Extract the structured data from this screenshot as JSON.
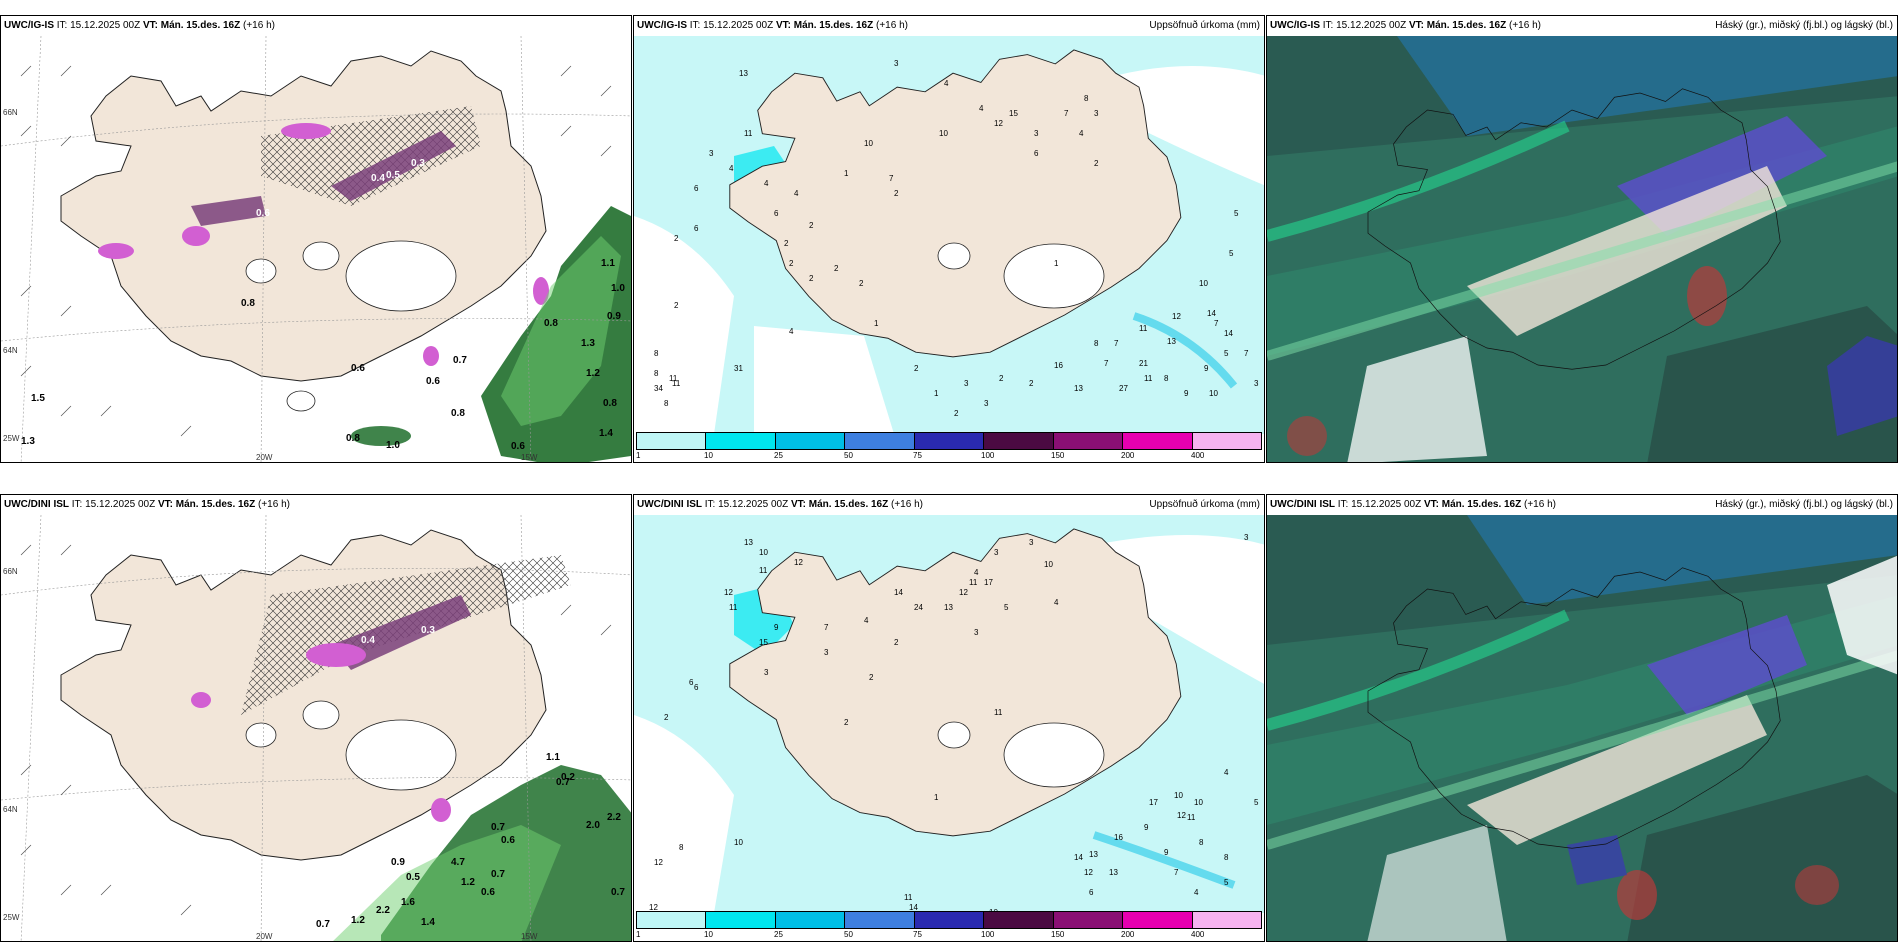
{
  "panels": [
    {
      "model": "UWC/IG-IS",
      "it": "IT: 15.12.2025 00Z",
      "vt_label": "VT:",
      "vt": "Mán. 15.des. 16Z",
      "offset": "(+16 h)",
      "right": ""
    },
    {
      "model": "UWC/IG-IS",
      "it": "IT: 15.12.2025 00Z",
      "vt_label": "VT:",
      "vt": "Mán. 15.des. 16Z",
      "offset": "(+16 h)",
      "right": "Uppsöfnuð úrkoma (mm)"
    },
    {
      "model": "UWC/IG-IS",
      "it": "IT: 15.12.2025 00Z",
      "vt_label": "VT:",
      "vt": "Mán. 15.des. 16Z",
      "offset": "(+16 h)",
      "right": "Háský (gr.), miðský (fj.bl.) og lágský (bl.)"
    },
    {
      "model": "UWC/DINI ISL",
      "it": "IT: 15.12.2025 00Z",
      "vt_label": "VT:",
      "vt": "Mán. 15.des. 16Z",
      "offset": "(+16 h)",
      "right": ""
    },
    {
      "model": "UWC/DINI ISL",
      "it": "IT: 15.12.2025 00Z",
      "vt_label": "VT:",
      "vt": "Mán. 15.des. 16Z",
      "offset": "(+16 h)",
      "right": "Uppsöfnuð úrkoma (mm)"
    },
    {
      "model": "UWC/DINI ISL",
      "it": "IT: 15.12.2025 00Z",
      "vt_label": "VT:",
      "vt": "Mán. 15.des. 16Z",
      "offset": "(+16 h)",
      "right": "Háský (gr.), miðský (fj.bl.) og lágský (bl.)"
    }
  ],
  "coords": {
    "lat66": "66N",
    "lat64": "64N",
    "lon25": "25W",
    "lon20": "20W",
    "lon15": "15W"
  },
  "colorbar": {
    "ticks": [
      "1",
      "10",
      "25",
      "50",
      "75",
      "100",
      "150",
      "200",
      "400"
    ],
    "colors": [
      "#bff6f6",
      "#00e6ef",
      "#00bfe6",
      "#3e7fe0",
      "#2a2ab0",
      "#4b0a42",
      "#8a0f74",
      "#e600b0",
      "#f6b3f0"
    ]
  },
  "precip_top": [
    "3",
    "4",
    "4",
    "3",
    "3",
    "2",
    "13",
    "15",
    "12",
    "10",
    "8",
    "6",
    "11",
    "7",
    "7",
    "4",
    "5",
    "3",
    "4",
    "2",
    "8",
    "6",
    "11",
    "14",
    "8",
    "7",
    "2",
    "4",
    "2",
    "2",
    "2",
    "2",
    "1",
    "2",
    "3",
    "2",
    "2",
    "2",
    "3",
    "1",
    "1",
    "5",
    "10",
    "14",
    "16",
    "12",
    "13",
    "11",
    "21",
    "27",
    "9",
    "10",
    "8",
    "9",
    "7",
    "11",
    "34",
    "31",
    "11",
    "8",
    "6",
    "4",
    "2",
    "1",
    "2",
    "4",
    "6",
    "2",
    "10",
    "13",
    "8",
    "7",
    "7",
    "5",
    "3"
  ],
  "precip_bottom": [
    "3",
    "3",
    "4",
    "10",
    "12",
    "11",
    "10",
    "11",
    "13",
    "12",
    "13",
    "14",
    "17",
    "24",
    "12",
    "15",
    "9",
    "7",
    "6",
    "11",
    "5",
    "4",
    "3",
    "4",
    "3",
    "2",
    "2",
    "2",
    "1",
    "6",
    "10",
    "11",
    "12",
    "17",
    "16",
    "14",
    "13",
    "12",
    "10",
    "11",
    "9",
    "10",
    "8",
    "7",
    "6",
    "5",
    "4",
    "8",
    "12",
    "11",
    "14",
    "9",
    "8",
    "2",
    "3",
    "4",
    "5",
    "3",
    "12",
    "10",
    "13"
  ],
  "wind_vals_top": [
    "0.6",
    "0.8",
    "1.0",
    "1.3",
    "1.5",
    "0.8",
    "0.7",
    "0.6",
    "0.8",
    "1.1",
    "1.2",
    "1.3",
    "0.9",
    "0.8",
    "1.0",
    "1.4",
    "0.6",
    "0.4",
    "0.5",
    "0.3",
    "0.6",
    "0.8"
  ],
  "wind_vals_bottom": [
    "0.7",
    "1.2",
    "2.2",
    "1.6",
    "0.9",
    "0.5",
    "4.7",
    "0.7",
    "1.2",
    "0.6",
    "0.7",
    "0.2",
    "2.2",
    "1.1",
    "0.7",
    "2.0",
    "1.4",
    "0.7",
    "0.4",
    "0.3",
    "0.6"
  ]
}
